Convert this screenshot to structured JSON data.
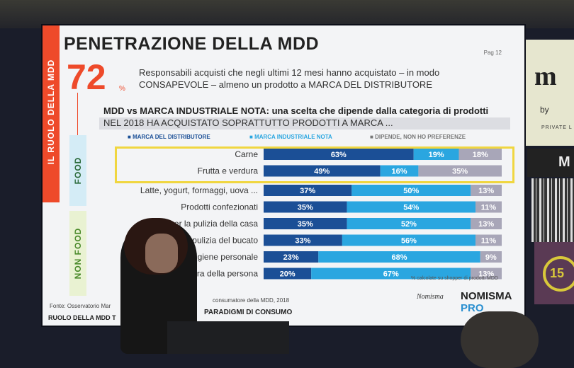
{
  "slide": {
    "sidebar_label": "IL RUOLO DELLA MDD",
    "title": "PENETRAZIONE DELLA MDD",
    "page": "Pag 12",
    "big_number": "72",
    "big_unit": "%",
    "description_line1": "Responsabili acquisti che negli ultimi 12 mesi hanno acquistato – in modo",
    "description_line2": "CONSAPEVOLE – almeno un prodotto a MARCA DEL DISTRIBUTORE",
    "subtitle": "MDD vs MARCA INDUSTRIALE NOTA: una scelta che dipende dalla categoria di prodotti",
    "question": "NEL 2018 HA ACQUISTATO SOPRATTUTTO PRODOTTI A MARCA ...",
    "group_food": "FOOD",
    "group_nonfood": "NON FOOD",
    "note": "% calcolate su shopper di prodotti MDD",
    "source_left": "Fonte: Osservatorio Mar",
    "source_right": "consumatore della MDD, 2018",
    "footer_left": "RUOLO DELLA MDD T",
    "footer_right": "PARADIGMI DI CONSUMO",
    "logo_nomisma": "Nomisma",
    "logo_pro_1": "NOMISMA",
    "logo_pro_2": "PRO"
  },
  "background": {
    "brand_letters": "m",
    "by": "by",
    "private_label": "PRIVATE L",
    "banner_letter": "M",
    "edition": "15"
  },
  "chart_data": {
    "type": "bar",
    "stacked": true,
    "orientation": "horizontal",
    "title": "NEL 2018 HA ACQUISTATO SOPRATTUTTO PRODOTTI A MARCA ...",
    "categories": [
      "Carne",
      "Frutta e verdura",
      "Latte, yogurt, formaggi, uova ...",
      "Prodotti confezionati",
      "D... per la pulizia della casa",
      "...pulizia del bucato",
      "...r l'igiene personale",
      "P... cura della persona"
    ],
    "series": [
      {
        "name": "MARCA DEL DISTRIBUTORE",
        "color": "#1b4f96",
        "values": [
          63,
          49,
          37,
          35,
          35,
          33,
          23,
          20
        ]
      },
      {
        "name": "MARCA INDUSTRIALE NOTA",
        "color": "#2aa6e0",
        "values": [
          19,
          16,
          50,
          54,
          52,
          56,
          68,
          67
        ]
      },
      {
        "name": "DIPENDE, NON HO PREFERENZE",
        "color": "#a8a6b8",
        "values": [
          18,
          35,
          13,
          11,
          13,
          11,
          9,
          13
        ]
      }
    ],
    "highlighted": [
      "Carne",
      "Frutta e verdura"
    ],
    "xlim": [
      0,
      100
    ],
    "legend": "top"
  }
}
